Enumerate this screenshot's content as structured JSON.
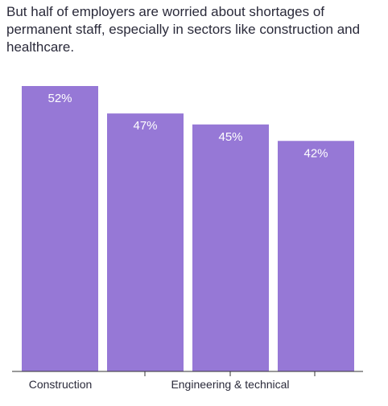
{
  "title": "But half of employers are worried about shortages of permanent staff, especially in sectors like construction and healthcare.",
  "colors": {
    "bar": "#9678d6",
    "axis": "#333333",
    "text": "#2a2a3a",
    "label": "#ffffff"
  },
  "chart_data": {
    "type": "bar",
    "title": "But half of employers are worried about shortages of permanent staff, especially in sectors like construction and healthcare.",
    "categories": [
      "Construction",
      "",
      "Engineering & technical",
      ""
    ],
    "values": [
      52,
      47,
      45,
      42
    ],
    "value_labels": [
      "52%",
      "47%",
      "45%",
      "42%"
    ],
    "xlabel": "",
    "ylabel": "",
    "ylim": [
      0,
      52
    ],
    "grid": false,
    "legend": "none"
  }
}
